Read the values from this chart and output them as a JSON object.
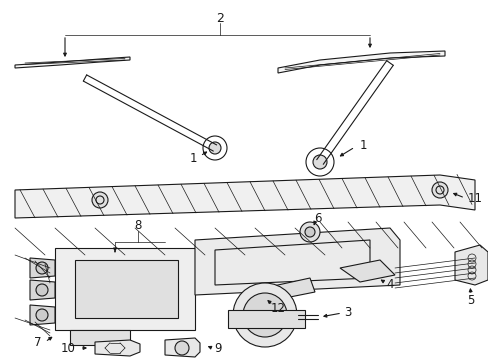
{
  "bg_color": "#ffffff",
  "line_color": "#1a1a1a",
  "fig_width": 4.89,
  "fig_height": 3.6,
  "dpi": 100,
  "lw": 0.8,
  "lw_thin": 0.5,
  "fontsize": 7.5
}
